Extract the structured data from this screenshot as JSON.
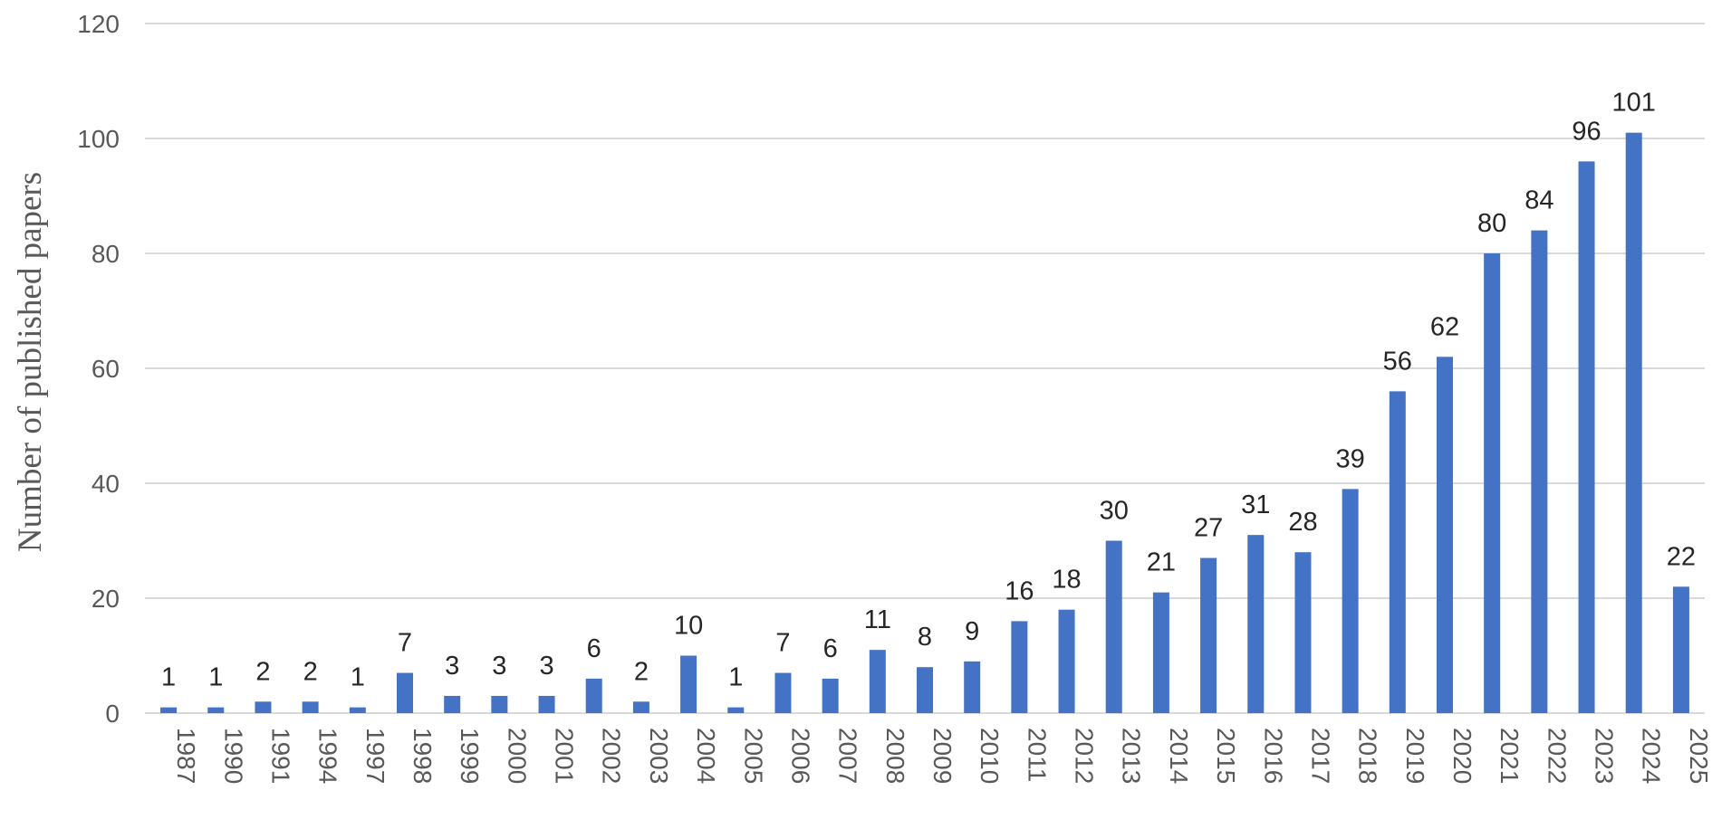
{
  "chart_data": {
    "type": "bar",
    "title": "",
    "xlabel": "",
    "ylabel": "Number of published papers",
    "ylim": [
      0,
      120
    ],
    "yticks": [
      0,
      20,
      40,
      60,
      80,
      100,
      120
    ],
    "grid": true,
    "legend": "none",
    "bar_color": "#4472C4",
    "grid_color": "#D9D9D9",
    "categories": [
      "1987",
      "1990",
      "1991",
      "1994",
      "1997",
      "1998",
      "1999",
      "2000",
      "2001",
      "2002",
      "2003",
      "2004",
      "2005",
      "2006",
      "2007",
      "2008",
      "2009",
      "2010",
      "2011",
      "2012",
      "2013",
      "2014",
      "2015",
      "2016",
      "2017",
      "2018",
      "2019",
      "2020",
      "2021",
      "2022",
      "2023",
      "2024",
      "2025"
    ],
    "values": [
      1,
      1,
      2,
      2,
      1,
      7,
      3,
      3,
      3,
      6,
      2,
      10,
      1,
      7,
      6,
      11,
      8,
      9,
      16,
      18,
      30,
      21,
      27,
      31,
      28,
      39,
      56,
      62,
      80,
      84,
      96,
      101,
      22
    ]
  }
}
